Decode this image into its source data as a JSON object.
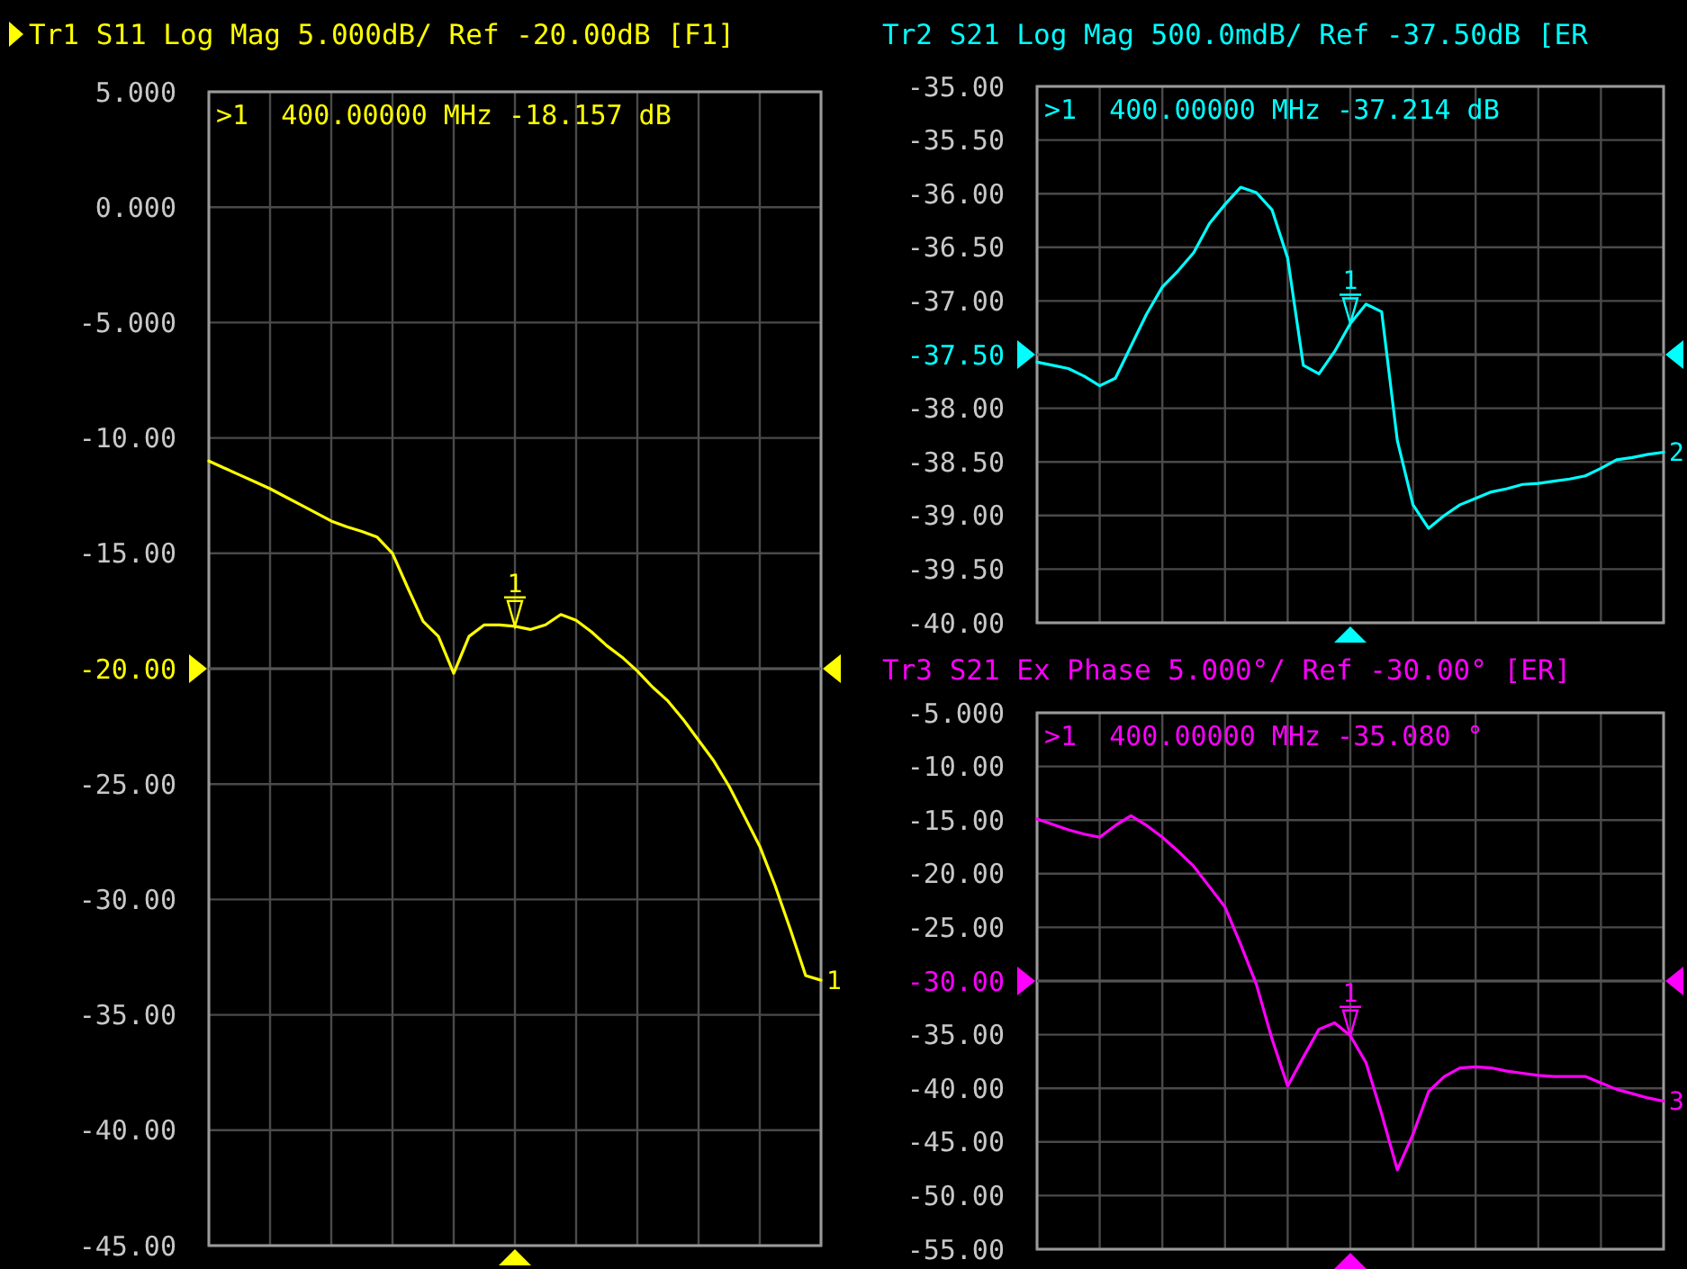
{
  "chart_data": [
    {
      "type": "line",
      "title": "Tr1 S11 Log Mag 5.000dB/ Ref -20.00dB [F1]",
      "categories": [
        null,
        null,
        null,
        null,
        null,
        null,
        null,
        null,
        null,
        null,
        null,
        null,
        null,
        null,
        null,
        null,
        null,
        null,
        null,
        null,
        null,
        null,
        null,
        null,
        null,
        null,
        null,
        null,
        null,
        null,
        null,
        null,
        null,
        null,
        null,
        null,
        null,
        null,
        null,
        null,
        null
      ],
      "series": [
        {
          "name": "1",
          "color": "#ffff00",
          "values": [
            -11.0,
            -11.3,
            -11.6,
            -11.9,
            -12.2,
            -12.55,
            -12.9,
            -13.25,
            -13.6,
            -13.85,
            -14.05,
            -14.3,
            -15.0,
            -16.5,
            -17.95,
            -18.6,
            -20.2,
            -18.6,
            -18.1,
            -18.1,
            -18.16,
            -18.3,
            -18.1,
            -17.65,
            -17.9,
            -18.4,
            -19.0,
            -19.5,
            -20.1,
            -20.8,
            -21.4,
            -22.2,
            -23.1,
            -24.0,
            -25.1,
            -26.4,
            -27.7,
            -29.4,
            -31.3,
            -33.3,
            -33.5
          ]
        }
      ],
      "ylim": [
        -45,
        5
      ],
      "yticks": [
        {
          "value": 5,
          "label": "5.000"
        },
        {
          "value": 0,
          "label": "0.000"
        },
        {
          "value": -5,
          "label": "-5.000"
        },
        {
          "value": -10,
          "label": "-10.00"
        },
        {
          "value": -15,
          "label": "-15.00"
        },
        {
          "value": -20,
          "label": "-20.00"
        },
        {
          "value": -25,
          "label": "-25.00"
        },
        {
          "value": -30,
          "label": "-30.00"
        },
        {
          "value": -35,
          "label": "-35.00"
        },
        {
          "value": -40,
          "label": "-40.00"
        },
        {
          "value": -45,
          "label": "-45.00"
        }
      ],
      "grid": true,
      "tick_labels": "y",
      "ref_lines": [
        {
          "axis": "y",
          "value": -20
        }
      ],
      "annotations": [
        ">1  400.00000 MHz -18.157 dB",
        {
          "text": "1",
          "y": -18.16
        }
      ]
    },
    {
      "type": "line",
      "title": "Tr2 S21 Log Mag 500.0mdB/ Ref -37.50dB [ER",
      "categories": [
        null,
        null,
        null,
        null,
        null,
        null,
        null,
        null,
        null,
        null,
        null,
        null,
        null,
        null,
        null,
        null,
        null,
        null,
        null,
        null,
        null,
        null,
        null,
        null,
        null,
        null,
        null,
        null,
        null,
        null,
        null,
        null,
        null,
        null,
        null,
        null,
        null,
        null,
        null,
        null,
        null
      ],
      "series": [
        {
          "name": "2",
          "color": "#00ffff",
          "values": [
            -37.57,
            -37.6,
            -37.63,
            -37.7,
            -37.79,
            -37.72,
            -37.42,
            -37.12,
            -36.87,
            -36.72,
            -36.55,
            -36.28,
            -36.1,
            -35.94,
            -35.99,
            -36.15,
            -36.6,
            -37.6,
            -37.68,
            -37.47,
            -37.21,
            -37.03,
            -37.1,
            -38.3,
            -38.9,
            -39.12,
            -39.0,
            -38.9,
            -38.84,
            -38.78,
            -38.75,
            -38.71,
            -38.7,
            -38.68,
            -38.66,
            -38.63,
            -38.56,
            -38.48,
            -38.46,
            -38.43,
            -38.41
          ]
        }
      ],
      "ylim": [
        -40,
        -35
      ],
      "yticks": [
        {
          "value": -35,
          "label": "-35.00"
        },
        {
          "value": -35.5,
          "label": "-35.50"
        },
        {
          "value": -36,
          "label": "-36.00"
        },
        {
          "value": -36.5,
          "label": "-36.50"
        },
        {
          "value": -37,
          "label": "-37.00"
        },
        {
          "value": -37.5,
          "label": "-37.50"
        },
        {
          "value": -38,
          "label": "-38.00"
        },
        {
          "value": -38.5,
          "label": "-38.50"
        },
        {
          "value": -39,
          "label": "-39.00"
        },
        {
          "value": -39.5,
          "label": "-39.50"
        },
        {
          "value": -40,
          "label": "-40.00"
        }
      ],
      "grid": true,
      "tick_labels": "y",
      "ref_lines": [
        {
          "axis": "y",
          "value": -37.5
        }
      ],
      "annotations": [
        ">1  400.00000 MHz -37.214 dB",
        {
          "text": "1",
          "y": -37.21
        }
      ]
    },
    {
      "type": "line",
      "title": "Tr3 S21 Ex Phase 5.000°/ Ref -30.00° [ER]",
      "categories": [
        null,
        null,
        null,
        null,
        null,
        null,
        null,
        null,
        null,
        null,
        null,
        null,
        null,
        null,
        null,
        null,
        null,
        null,
        null,
        null,
        null,
        null,
        null,
        null,
        null,
        null,
        null,
        null,
        null,
        null,
        null,
        null,
        null,
        null,
        null,
        null,
        null,
        null,
        null,
        null,
        null
      ],
      "series": [
        {
          "name": "3",
          "color": "#ff00ff",
          "values": [
            -14.9,
            -15.4,
            -15.9,
            -16.3,
            -16.6,
            -15.5,
            -14.6,
            -15.5,
            -16.6,
            -17.9,
            -19.3,
            -21.2,
            -23.1,
            -26.6,
            -30.3,
            -35.4,
            -39.8,
            -37.1,
            -34.5,
            -33.9,
            -35.1,
            -37.6,
            -42.4,
            -47.6,
            -44.3,
            -40.3,
            -38.9,
            -38.1,
            -38.0,
            -38.1,
            -38.4,
            -38.6,
            -38.8,
            -38.9,
            -38.9,
            -38.9,
            -39.5,
            -40.1,
            -40.5,
            -40.9,
            -41.2
          ]
        }
      ],
      "ylim": [
        -55,
        -5
      ],
      "yticks": [
        {
          "value": -5,
          "label": "-5.000"
        },
        {
          "value": -10,
          "label": "-10.00"
        },
        {
          "value": -15,
          "label": "-15.00"
        },
        {
          "value": -20,
          "label": "-20.00"
        },
        {
          "value": -25,
          "label": "-25.00"
        },
        {
          "value": -30,
          "label": "-30.00"
        },
        {
          "value": -35,
          "label": "-35.00"
        },
        {
          "value": -40,
          "label": "-40.00"
        },
        {
          "value": -45,
          "label": "-45.00"
        },
        {
          "value": -50,
          "label": "-50.00"
        },
        {
          "value": -55,
          "label": "-55.00"
        }
      ],
      "grid": true,
      "tick_labels": "y",
      "ref_lines": [
        {
          "axis": "y",
          "value": -30
        }
      ],
      "annotations": [
        ">1  400.00000 MHz -35.080 °",
        {
          "text": "1",
          "y": -35.1
        }
      ]
    }
  ]
}
